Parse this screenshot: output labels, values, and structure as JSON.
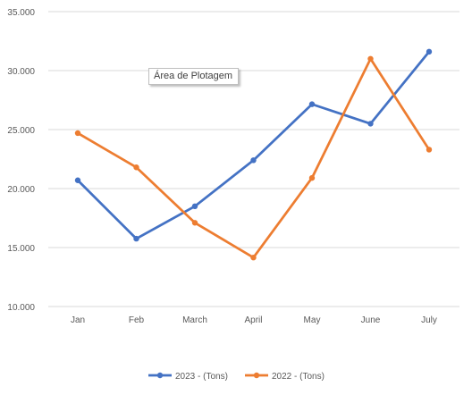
{
  "chart_data": {
    "type": "line",
    "categories": [
      "Jan",
      "Feb",
      "March",
      "April",
      "May",
      "June",
      "July"
    ],
    "series": [
      {
        "name": "2023 - (Tons)",
        "color": "#4472c4",
        "values": [
          20.7,
          15.75,
          18.5,
          22.4,
          27.15,
          25.5,
          31.6
        ]
      },
      {
        "name": "2022 - (Tons)",
        "color": "#ed7d31",
        "values": [
          24.7,
          21.8,
          17.1,
          14.15,
          20.9,
          31.0,
          23.3
        ]
      }
    ],
    "ylim": [
      10,
      35
    ],
    "yticks": [
      "10.000",
      "15.000",
      "20.000",
      "25.000",
      "30.000",
      "35.000"
    ],
    "grid": true,
    "legend": "bottom",
    "title": "",
    "xlabel": "",
    "ylabel": ""
  },
  "tooltip": {
    "text": "Área de Plotagem"
  }
}
